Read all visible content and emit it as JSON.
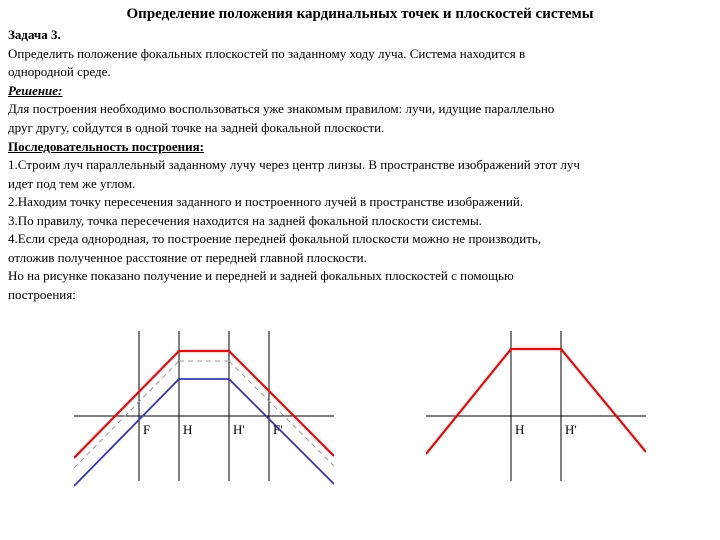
{
  "title": "Определение положения кардинальных точек и плоскостей системы",
  "task_label": "Задача 3.",
  "task_text1": "Определить положение фокальных плоскостей по заданному ходу луча. Система находится в",
  "task_text2": "однородной среде.",
  "solution_label": "Решение:",
  "solution_text1": "Для построения необходимо воспользоваться уже знакомым правилом: лучи, идущие параллельно",
  "solution_text2": "друг другу, сойдутся в одной точке на задней фокальной плоскости.",
  "sequence_label": "Последовательность построения:",
  "step1a": "1.Строим луч параллельный заданному лучу через центр линзы. В пространстве изображений этот луч",
  "step1b": "идет под тем же углом.",
  "step2": "2.Находим точку пересечения заданного и построенного лучей в пространстве изображений.",
  "step3": "3.По правилу, точка пересечения находится на задней фокальной плоскости системы.",
  "step4a": "4.Если среда однородная, то построение передней фокальной плоскости можно не производить,",
  "step4b": "отложив полученное расстояние от передней главной плоскости.",
  "note1": "Но на рисунке показано получение и передней и задней фокальных плоскостей с помощью",
  "note2": "построения:",
  "labels": {
    "F": "F",
    "H": "H",
    "Hprime": "H'",
    "Fprime": "F'"
  },
  "styling": {
    "red_color": "#ff0000",
    "blue_color": "#3333cc",
    "gray_color": "#999999",
    "black_color": "#000000",
    "line_width_red": 2.2,
    "line_width_thin": 1,
    "line_width_dash": 1,
    "diagram1_width": 260,
    "diagram1_height": 170,
    "diagram2_width": 220,
    "diagram2_height": 170,
    "font_label": "13px Times New Roman"
  }
}
